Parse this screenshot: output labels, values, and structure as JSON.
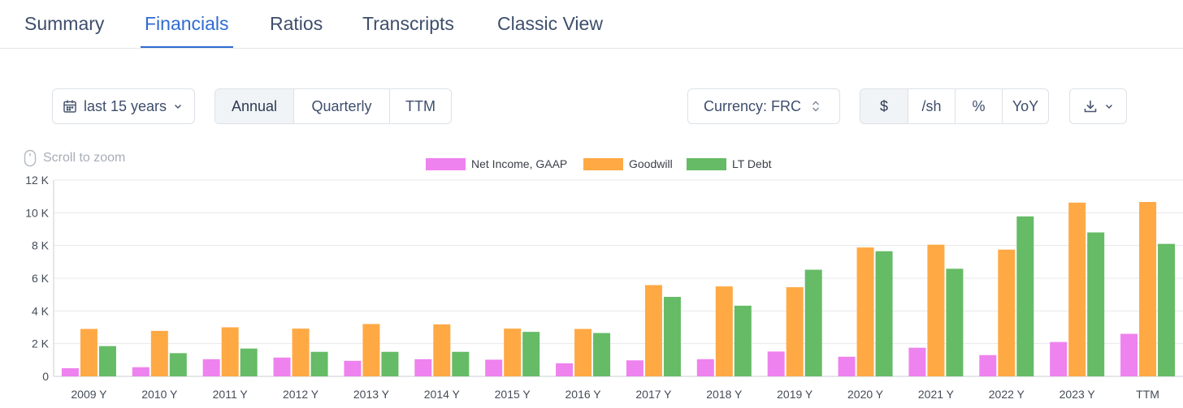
{
  "tabs": [
    {
      "label": "Summary"
    },
    {
      "label": "Financials"
    },
    {
      "label": "Ratios"
    },
    {
      "label": "Transcripts"
    },
    {
      "label": "Classic View"
    }
  ],
  "active_tab": "Financials",
  "controls": {
    "range_label": "last 15 years",
    "period_options": [
      "Annual",
      "Quarterly",
      "TTM"
    ],
    "period_selected": "Annual",
    "currency_label": "Currency: FRC",
    "unit_options": [
      "$",
      "/sh",
      "%",
      "YoY"
    ],
    "unit_selected": "$"
  },
  "zoom_hint": "Scroll to zoom",
  "colors": {
    "accent": "#2f6bd1",
    "net_income": "#ee82ee",
    "goodwill": "#ffa944",
    "lt_debt": "#66bb66"
  },
  "chart_data": {
    "type": "bar",
    "categories": [
      "2009 Y",
      "2010 Y",
      "2011 Y",
      "2012 Y",
      "2013 Y",
      "2014 Y",
      "2015 Y",
      "2016 Y",
      "2017 Y",
      "2018 Y",
      "2019 Y",
      "2020 Y",
      "2021 Y",
      "2022 Y",
      "2023 Y",
      "TTM"
    ],
    "series": [
      {
        "name": "Net Income, GAAP",
        "color": "#ee82ee",
        "values": [
          500,
          560,
          1050,
          1150,
          950,
          1050,
          1020,
          800,
          980,
          1050,
          1520,
          1200,
          1750,
          1300,
          2100,
          2600
        ]
      },
      {
        "name": "Goodwill",
        "color": "#ffa944",
        "values": [
          2900,
          2780,
          3000,
          2920,
          3200,
          3180,
          2920,
          2900,
          5580,
          5500,
          5450,
          7880,
          8050,
          7750,
          10620,
          10660
        ]
      },
      {
        "name": "LT Debt",
        "color": "#66bb66",
        "values": [
          1850,
          1420,
          1700,
          1500,
          1500,
          1500,
          2720,
          2650,
          4860,
          4320,
          6520,
          7650,
          6580,
          9780,
          8800,
          8100
        ]
      }
    ],
    "ylim": [
      0,
      12000
    ],
    "yticks": [
      "0",
      "2 K",
      "4 K",
      "6 K",
      "8 K",
      "10 K",
      "12 K"
    ],
    "grid": true,
    "legend_position": "top-center"
  }
}
